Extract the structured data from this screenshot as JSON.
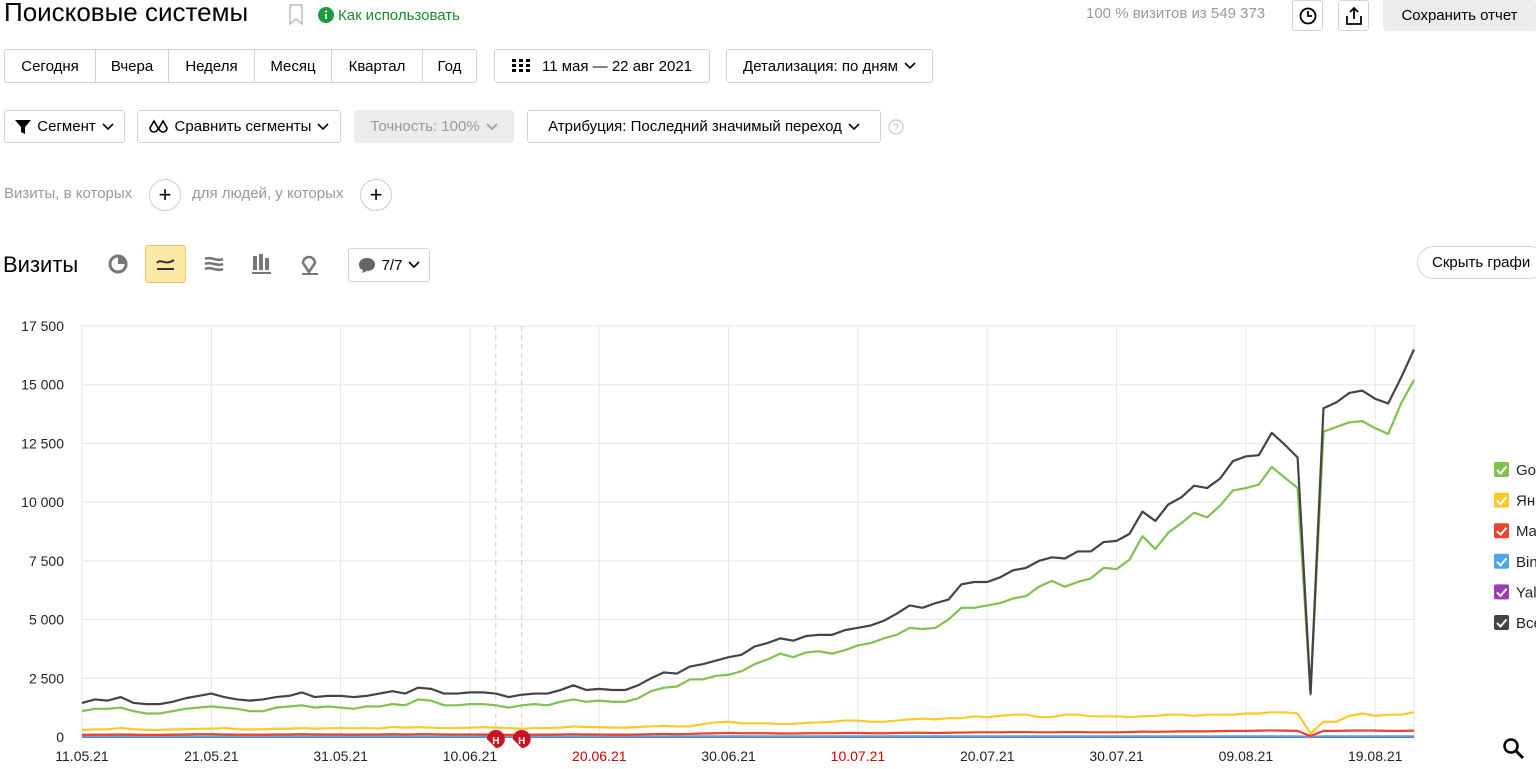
{
  "header": {
    "title": "Поисковые системы",
    "help_link": "Как использовать",
    "visits_info": "100 % визитов из 549 373",
    "save_button": "Сохранить отчет"
  },
  "periods": [
    "Сегодня",
    "Вчера",
    "Неделя",
    "Месяц",
    "Квартал",
    "Год"
  ],
  "date_range": "11 мая — 22 авг 2021",
  "detail": "Детализация: по дням",
  "filters": {
    "segment": "Сегмент",
    "compare": "Сравнить сегменты",
    "accuracy": "Точность: 100%",
    "attribution": "Атрибуция: Последний значимый переход"
  },
  "conditions": {
    "visits": "Визиты, в которых",
    "people": "для людей, у которых"
  },
  "chart_toolbar": {
    "metric": "Визиты",
    "notes": "7/7",
    "hide_chart": "Скрыть графи"
  },
  "chart_data": {
    "type": "line",
    "categories": [
      "11.05.21",
      null,
      null,
      null,
      null,
      null,
      null,
      null,
      null,
      null,
      "21.05.21",
      null,
      null,
      null,
      null,
      null,
      null,
      null,
      null,
      null,
      "31.05.21",
      null,
      null,
      null,
      null,
      null,
      null,
      null,
      null,
      null,
      "10.06.21",
      null,
      null,
      null,
      null,
      null,
      null,
      null,
      null,
      null,
      "20.06.21",
      null,
      null,
      null,
      null,
      null,
      null,
      null,
      null,
      null,
      "30.06.21",
      null,
      null,
      null,
      null,
      null,
      null,
      null,
      null,
      null,
      "10.07.21",
      null,
      null,
      null,
      null,
      null,
      null,
      null,
      null,
      null,
      "20.07.21",
      null,
      null,
      null,
      null,
      null,
      null,
      null,
      null,
      null,
      "30.07.21",
      null,
      null,
      null,
      null,
      null,
      null,
      null,
      null,
      null,
      "09.08.21",
      null,
      null,
      null,
      null,
      null,
      null,
      null,
      null,
      null,
      "19.08.21",
      null,
      null,
      null
    ],
    "x_label_highlight": {
      "color": "#cc0000",
      "categories": [
        "20.06.21",
        "10.07.21"
      ]
    },
    "ylim": [
      0,
      17500
    ],
    "yticks": [
      0,
      {
        "value": 2500,
        "label": "2 500"
      },
      {
        "value": 5000,
        "label": "5 000"
      },
      {
        "value": 7500,
        "label": "7 500"
      },
      {
        "value": 10000,
        "label": "10 000"
      },
      {
        "value": 12500,
        "label": "12 500"
      },
      {
        "value": 15000,
        "label": "15 000"
      },
      {
        "value": 17500,
        "label": "17 500"
      }
    ],
    "grid": true,
    "annotations": [
      {
        "text": "Н",
        "category": 32
      },
      {
        "text": "Н",
        "category": 34
      }
    ],
    "series": [
      {
        "name": "Go",
        "color": "#7fc24f",
        "values": [
          1100,
          1200,
          1200,
          1250,
          1100,
          1000,
          1000,
          1100,
          1200,
          1250,
          1300,
          1250,
          1200,
          1100,
          1100,
          1250,
          1300,
          1350,
          1250,
          1300,
          1250,
          1200,
          1300,
          1300,
          1400,
          1350,
          1600,
          1550,
          1350,
          1350,
          1400,
          1400,
          1350,
          1250,
          1350,
          1400,
          1350,
          1500,
          1600,
          1500,
          1550,
          1500,
          1500,
          1650,
          1950,
          2100,
          2150,
          2450,
          2450,
          2600,
          2650,
          2800,
          3100,
          3300,
          3550,
          3400,
          3600,
          3650,
          3550,
          3700,
          3900,
          4000,
          4200,
          4350,
          4650,
          4600,
          4650,
          5000,
          5500,
          5500,
          5600,
          5700,
          5900,
          6000,
          6400,
          6650,
          6400,
          6600,
          6750,
          7200,
          7150,
          7550,
          8550,
          8000,
          8700,
          9100,
          9550,
          9350,
          9850,
          10500,
          10600,
          10750,
          11500,
          11050,
          10600,
          1800,
          13000,
          13200,
          13400,
          13450,
          13150,
          12900,
          14200,
          15200
        ]
      },
      {
        "name": "Ян",
        "color": "#ffc829",
        "values": [
          300,
          320,
          330,
          380,
          330,
          300,
          300,
          320,
          330,
          350,
          350,
          380,
          330,
          320,
          330,
          350,
          350,
          380,
          350,
          370,
          380,
          370,
          380,
          360,
          430,
          400,
          420,
          400,
          380,
          380,
          400,
          420,
          400,
          380,
          350,
          380,
          380,
          400,
          450,
          420,
          420,
          400,
          400,
          430,
          450,
          480,
          450,
          450,
          550,
          620,
          650,
          580,
          580,
          580,
          550,
          560,
          600,
          620,
          650,
          700,
          700,
          650,
          650,
          700,
          750,
          780,
          750,
          800,
          800,
          880,
          850,
          900,
          950,
          950,
          850,
          850,
          950,
          950,
          880,
          880,
          880,
          850,
          880,
          900,
          950,
          950,
          900,
          950,
          950,
          950,
          1000,
          1000,
          1050,
          1050,
          1000,
          150,
          650,
          650,
          900,
          1000,
          900,
          950,
          950,
          1050
        ]
      },
      {
        "name": "Ma",
        "color": "#f0412a",
        "values": [
          90,
          100,
          100,
          110,
          100,
          90,
          90,
          100,
          110,
          120,
          120,
          110,
          100,
          100,
          100,
          110,
          110,
          120,
          110,
          110,
          110,
          100,
          110,
          110,
          120,
          110,
          120,
          120,
          110,
          110,
          110,
          110,
          100,
          90,
          100,
          100,
          100,
          110,
          120,
          110,
          110,
          100,
          100,
          110,
          120,
          130,
          120,
          130,
          150,
          160,
          170,
          160,
          160,
          160,
          150,
          150,
          160,
          160,
          160,
          170,
          170,
          160,
          160,
          170,
          180,
          180,
          170,
          180,
          190,
          200,
          200,
          200,
          210,
          210,
          200,
          200,
          210,
          210,
          200,
          200,
          200,
          210,
          230,
          220,
          230,
          240,
          240,
          240,
          250,
          260,
          260,
          270,
          280,
          270,
          260,
          40,
          260,
          260,
          270,
          280,
          270,
          260,
          260,
          270
        ]
      },
      {
        "name": "Bin",
        "color": "#4ba6e8",
        "values": [
          20,
          20,
          20,
          20,
          20,
          20,
          20,
          20,
          20,
          20,
          20,
          20,
          20,
          20,
          20,
          20,
          20,
          20,
          20,
          20,
          20,
          20,
          20,
          20,
          20,
          20,
          20,
          20,
          20,
          20,
          20,
          20,
          20,
          20,
          20,
          20,
          20,
          20,
          20,
          20,
          25,
          25,
          25,
          25,
          25,
          25,
          25,
          25,
          25,
          25,
          25,
          25,
          25,
          25,
          25,
          25,
          25,
          25,
          25,
          25,
          25,
          25,
          25,
          25,
          25,
          25,
          25,
          25,
          25,
          25,
          25,
          25,
          25,
          25,
          25,
          25,
          25,
          25,
          25,
          25,
          30,
          30,
          30,
          30,
          30,
          30,
          30,
          30,
          30,
          30,
          30,
          30,
          30,
          30,
          30,
          5,
          30,
          30,
          30,
          30,
          30,
          30,
          30,
          30
        ]
      },
      {
        "name": "Yal",
        "color": "#9a3db4",
        "values": [
          5,
          5,
          5,
          5,
          5,
          5,
          5,
          5,
          5,
          5,
          5,
          5,
          5,
          5,
          5,
          5,
          5,
          5,
          5,
          5,
          5,
          5,
          5,
          5,
          5,
          5,
          5,
          5,
          5,
          5,
          5,
          5,
          5,
          5,
          5,
          5,
          5,
          5,
          5,
          5,
          5,
          5,
          5,
          5,
          5,
          5,
          5,
          5,
          5,
          5,
          5,
          5,
          5,
          5,
          5,
          5,
          5,
          5,
          5,
          5,
          5,
          5,
          5,
          5,
          5,
          5,
          5,
          5,
          5,
          5,
          5,
          5,
          5,
          5,
          5,
          5,
          5,
          5,
          5,
          5,
          5,
          5,
          5,
          5,
          5,
          5,
          5,
          5,
          5,
          5,
          5,
          5,
          5,
          5,
          5,
          1,
          5,
          5,
          5,
          5,
          5,
          5,
          5,
          5
        ]
      },
      {
        "name": "Все",
        "color": "#444444",
        "values": [
          1450,
          1600,
          1550,
          1700,
          1450,
          1400,
          1400,
          1500,
          1650,
          1750,
          1850,
          1700,
          1600,
          1550,
          1600,
          1700,
          1750,
          1900,
          1700,
          1750,
          1750,
          1700,
          1750,
          1850,
          1950,
          1850,
          2100,
          2050,
          1850,
          1850,
          1900,
          1900,
          1850,
          1700,
          1800,
          1850,
          1850,
          2000,
          2200,
          2000,
          2050,
          2000,
          2000,
          2200,
          2500,
          2750,
          2700,
          3000,
          3100,
          3250,
          3400,
          3500,
          3850,
          4000,
          4200,
          4100,
          4300,
          4350,
          4350,
          4550,
          4650,
          4750,
          4950,
          5250,
          5600,
          5500,
          5700,
          5850,
          6500,
          6600,
          6600,
          6800,
          7100,
          7200,
          7500,
          7650,
          7600,
          7900,
          7900,
          8300,
          8350,
          8650,
          9600,
          9200,
          9900,
          10200,
          10700,
          10600,
          11000,
          11750,
          11950,
          12000,
          12950,
          12450,
          11900,
          1850,
          14000,
          14250,
          14650,
          14750,
          14400,
          14200,
          15300,
          16500
        ]
      }
    ]
  }
}
